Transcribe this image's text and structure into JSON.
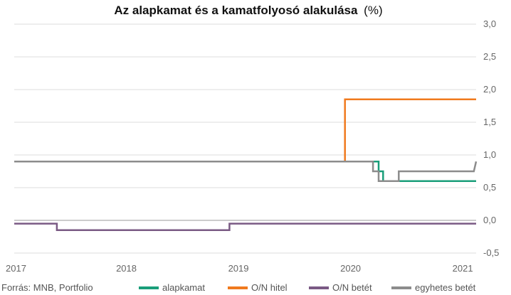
{
  "chart_data": {
    "type": "line",
    "title": "Az alapkamat és a kamatfolyosó alakulása",
    "title_unit": "(%)",
    "source": "Forrás: MNB, Portfolio",
    "x_ticks": [
      {
        "label": "2017",
        "year": 2017.0
      },
      {
        "label": "2018",
        "year": 2018.0
      },
      {
        "label": "2019",
        "year": 2019.0
      },
      {
        "label": "2020",
        "year": 2020.0
      },
      {
        "label": "2021",
        "year": 2021.0
      }
    ],
    "xlim": [
      2017.0,
      2021.12
    ],
    "y_ticks": [
      "3,0",
      "2,5",
      "2,0",
      "1,5",
      "1,0",
      "0,5",
      "0,0",
      "-0,5"
    ],
    "ylim": [
      -0.5,
      3.0
    ],
    "grid": true,
    "legend_position": "bottom",
    "series": [
      {
        "name": "alapkamat",
        "color": "#1a9e7a",
        "points": [
          [
            2017.0,
            0.9
          ],
          [
            2020.25,
            0.9
          ],
          [
            2020.25,
            0.75
          ],
          [
            2020.29,
            0.75
          ],
          [
            2020.29,
            0.6
          ],
          [
            2021.12,
            0.6
          ]
        ]
      },
      {
        "name": "O/N hitel",
        "color": "#f07a1e",
        "points": [
          [
            2017.0,
            0.9
          ],
          [
            2019.95,
            0.9
          ],
          [
            2019.95,
            1.85
          ],
          [
            2021.12,
            1.85
          ]
        ]
      },
      {
        "name": "O/N betét",
        "color": "#7a5a84",
        "points": [
          [
            2017.0,
            -0.05
          ],
          [
            2017.38,
            -0.05
          ],
          [
            2017.38,
            -0.15
          ],
          [
            2018.92,
            -0.15
          ],
          [
            2018.92,
            -0.05
          ],
          [
            2021.12,
            -0.05
          ]
        ]
      },
      {
        "name": "egyhetes betét",
        "color": "#8c8c8c",
        "points": [
          [
            2017.0,
            0.9
          ],
          [
            2020.2,
            0.9
          ],
          [
            2020.2,
            0.75
          ],
          [
            2020.25,
            0.75
          ],
          [
            2020.25,
            0.6
          ],
          [
            2020.43,
            0.6
          ],
          [
            2020.43,
            0.75
          ],
          [
            2021.1,
            0.75
          ],
          [
            2021.12,
            0.9
          ]
        ]
      }
    ]
  }
}
